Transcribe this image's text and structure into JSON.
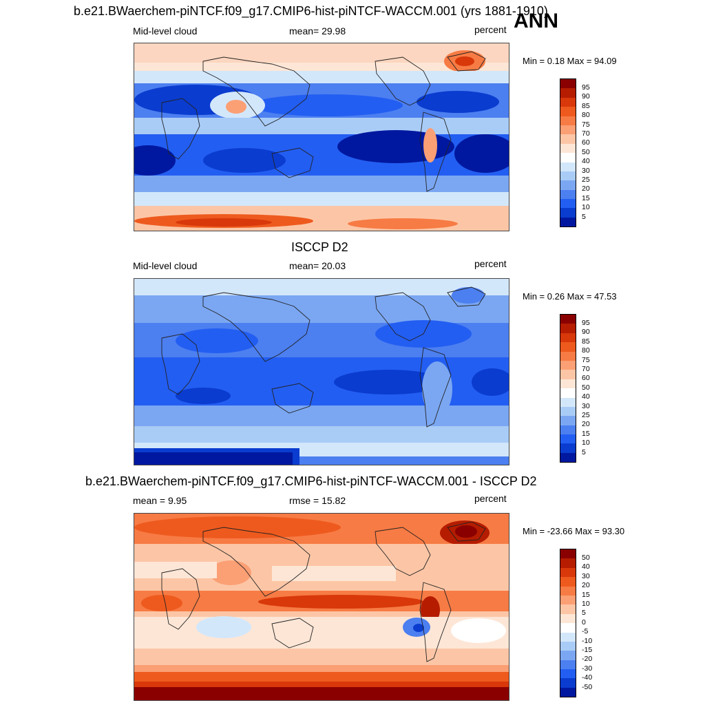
{
  "header": {
    "title": "b.e21.BWaerchem-piNTCF.f09_g17.CMIP6-hist-piNTCF-WACCM.001 (yrs 1881-1910)",
    "season": "ANN"
  },
  "panels": [
    {
      "id": "model",
      "left_label": "Mid-level cloud",
      "center_label": "mean=  29.98",
      "right_label": "percent",
      "minmax": "Min =   0.18 Max =  94.09",
      "colorbar": {
        "labels": [
          "95",
          "90",
          "85",
          "80",
          "75",
          "70",
          "60",
          "50",
          "40",
          "30",
          "25",
          "20",
          "15",
          "10",
          "5"
        ],
        "colors": [
          "#8a0000",
          "#b51c00",
          "#d8380a",
          "#ee5a1e",
          "#f77b44",
          "#fb9f74",
          "#fcc6a6",
          "#fde6d6",
          "#ffffff",
          "#d3e7fb",
          "#a9ccf7",
          "#7ba7f2",
          "#4c7ff0",
          "#235ef2",
          "#0a3ccf",
          "#00189f"
        ]
      }
    },
    {
      "id": "obs",
      "title": "ISCCP D2",
      "left_label": "Mid-level cloud",
      "center_label": "mean=  20.03",
      "right_label": "percent",
      "minmax": "Min =   0.26 Max =  47.53",
      "colorbar": {
        "labels": [
          "95",
          "90",
          "85",
          "80",
          "75",
          "70",
          "60",
          "50",
          "40",
          "30",
          "25",
          "20",
          "15",
          "10",
          "5"
        ],
        "colors": [
          "#8a0000",
          "#b51c00",
          "#d8380a",
          "#ee5a1e",
          "#f77b44",
          "#fb9f74",
          "#fcc6a6",
          "#fde6d6",
          "#ffffff",
          "#d3e7fb",
          "#a9ccf7",
          "#7ba7f2",
          "#4c7ff0",
          "#235ef2",
          "#0a3ccf",
          "#00189f"
        ]
      }
    },
    {
      "id": "diff",
      "title": "b.e21.BWaerchem-piNTCF.f09_g17.CMIP6-hist-piNTCF-WACCM.001 - ISCCP D2",
      "left_label": "mean =   9.95",
      "center_label": "rmse =  15.82",
      "right_label": "percent",
      "minmax": "Min = -23.66 Max =  93.30",
      "colorbar": {
        "labels": [
          "50",
          "40",
          "30",
          "20",
          "15",
          "10",
          "5",
          "0",
          "-5",
          "-10",
          "-15",
          "-20",
          "-30",
          "-40",
          "-50"
        ],
        "colors": [
          "#8a0000",
          "#b51c00",
          "#d8380a",
          "#ee5a1e",
          "#f77b44",
          "#fb9f74",
          "#fcc6a6",
          "#fde6d6",
          "#ffffff",
          "#d3e7fb",
          "#a9ccf7",
          "#7ba7f2",
          "#4c7ff0",
          "#235ef2",
          "#0a3ccf",
          "#00189f"
        ]
      }
    }
  ]
}
